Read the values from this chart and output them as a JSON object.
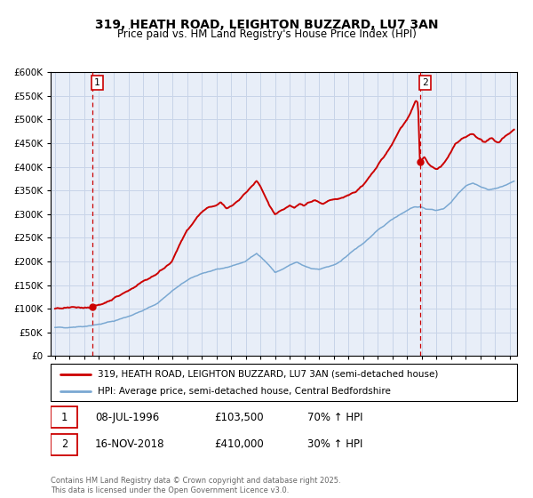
{
  "title": "319, HEATH ROAD, LEIGHTON BUZZARD, LU7 3AN",
  "subtitle": "Price paid vs. HM Land Registry's House Price Index (HPI)",
  "red_label": "319, HEATH ROAD, LEIGHTON BUZZARD, LU7 3AN (semi-detached house)",
  "blue_label": "HPI: Average price, semi-detached house, Central Bedfordshire",
  "annotation1_date": "08-JUL-1996",
  "annotation1_price": "£103,500",
  "annotation1_hpi": "70% ↑ HPI",
  "annotation2_date": "16-NOV-2018",
  "annotation2_price": "£410,000",
  "annotation2_hpi": "30% ↑ HPI",
  "footer": "Contains HM Land Registry data © Crown copyright and database right 2025.\nThis data is licensed under the Open Government Licence v3.0.",
  "ylim": [
    0,
    600000
  ],
  "xlim_start": 1993.7,
  "xlim_end": 2025.5,
  "vline1_x": 1996.52,
  "vline2_x": 2018.88,
  "marker1_x": 1996.52,
  "marker1_y": 103500,
  "marker2_x": 2018.88,
  "marker2_y": 410000,
  "red_color": "#cc0000",
  "blue_color": "#7aa8d2",
  "grid_color": "#c8d4e8",
  "background_color": "#e8eef8",
  "hatch_color": "#c0cce0"
}
